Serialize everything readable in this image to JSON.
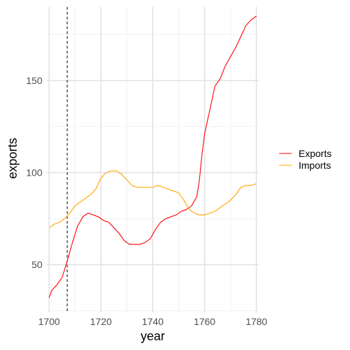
{
  "chart_data": {
    "type": "line",
    "xlabel": "year",
    "ylabel": "exports",
    "xlim": [
      1699,
      1781
    ],
    "ylim": [
      24,
      190
    ],
    "x_ticks": [
      1700,
      1720,
      1740,
      1760,
      1780
    ],
    "y_ticks": [
      50,
      100,
      150
    ],
    "grid": true,
    "legend_position": "right",
    "reference_line": {
      "x": 1707,
      "style": "dashed",
      "color": "#000000"
    },
    "series": [
      {
        "name": "Exports",
        "color": "#ff0000",
        "points": [
          [
            1700,
            32
          ],
          [
            1701,
            36
          ],
          [
            1703,
            39
          ],
          [
            1705,
            43
          ],
          [
            1707,
            52
          ],
          [
            1709,
            62
          ],
          [
            1711,
            71
          ],
          [
            1713,
            76
          ],
          [
            1715,
            78
          ],
          [
            1717,
            77
          ],
          [
            1719,
            76
          ],
          [
            1721,
            74
          ],
          [
            1723,
            73
          ],
          [
            1725,
            70
          ],
          [
            1727,
            67
          ],
          [
            1729,
            63
          ],
          [
            1731,
            61
          ],
          [
            1733,
            61
          ],
          [
            1735,
            61
          ],
          [
            1737,
            62
          ],
          [
            1739,
            64
          ],
          [
            1741,
            69
          ],
          [
            1743,
            73
          ],
          [
            1745,
            75
          ],
          [
            1747,
            76
          ],
          [
            1749,
            77
          ],
          [
            1751,
            79
          ],
          [
            1753,
            80
          ],
          [
            1755,
            82
          ],
          [
            1757,
            87
          ],
          [
            1758,
            96
          ],
          [
            1759,
            110
          ],
          [
            1760,
            121
          ],
          [
            1762,
            134
          ],
          [
            1764,
            147
          ],
          [
            1766,
            151
          ],
          [
            1768,
            158
          ],
          [
            1770,
            163
          ],
          [
            1772,
            168
          ],
          [
            1774,
            174
          ],
          [
            1776,
            180
          ],
          [
            1778,
            183
          ],
          [
            1780,
            185
          ]
        ]
      },
      {
        "name": "Imports",
        "color": "#ffa500",
        "points": [
          [
            1700,
            70
          ],
          [
            1702,
            72
          ],
          [
            1704,
            73
          ],
          [
            1706,
            75
          ],
          [
            1708,
            78
          ],
          [
            1710,
            82
          ],
          [
            1712,
            84
          ],
          [
            1714,
            86
          ],
          [
            1716,
            88
          ],
          [
            1718,
            91
          ],
          [
            1720,
            97
          ],
          [
            1722,
            100
          ],
          [
            1724,
            101
          ],
          [
            1726,
            101
          ],
          [
            1728,
            99
          ],
          [
            1730,
            96
          ],
          [
            1732,
            93
          ],
          [
            1734,
            92
          ],
          [
            1736,
            92
          ],
          [
            1738,
            92
          ],
          [
            1740,
            92
          ],
          [
            1742,
            93
          ],
          [
            1744,
            92
          ],
          [
            1746,
            91
          ],
          [
            1748,
            90
          ],
          [
            1750,
            89
          ],
          [
            1752,
            85
          ],
          [
            1754,
            80
          ],
          [
            1756,
            78
          ],
          [
            1758,
            77
          ],
          [
            1760,
            77
          ],
          [
            1762,
            78
          ],
          [
            1764,
            79
          ],
          [
            1766,
            81
          ],
          [
            1768,
            83
          ],
          [
            1770,
            85
          ],
          [
            1772,
            88
          ],
          [
            1774,
            92
          ],
          [
            1776,
            93
          ],
          [
            1778,
            93
          ],
          [
            1780,
            94
          ]
        ]
      }
    ]
  }
}
